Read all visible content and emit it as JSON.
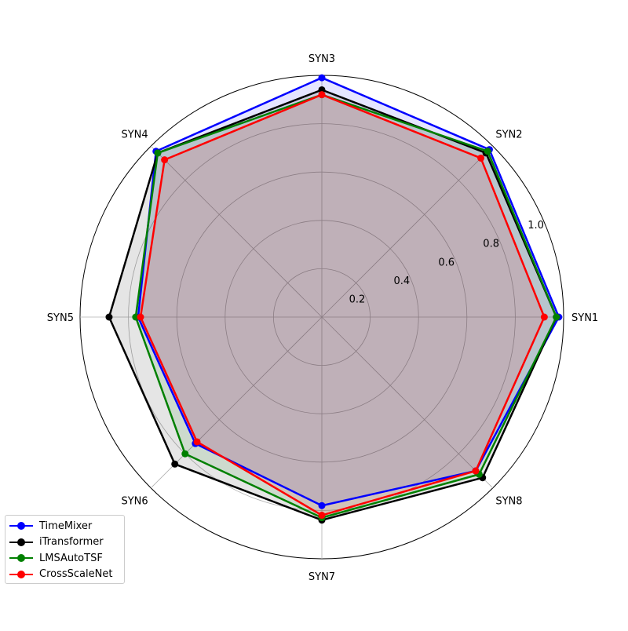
{
  "chart_data": {
    "type": "radar",
    "title": "",
    "categories": [
      "SYN1",
      "SYN2",
      "SYN3",
      "SYN4",
      "SYN5",
      "SYN6",
      "SYN7",
      "SYN8"
    ],
    "rlim": [
      0,
      1.0
    ],
    "radial_ticks": [
      0.2,
      0.4,
      0.6,
      0.8,
      1.0
    ],
    "radial_tick_labels": [
      "0.2",
      "0.4",
      "0.6",
      "0.8",
      "1.0"
    ],
    "grid": true,
    "legend_position": "lower-left",
    "series": [
      {
        "name": "TimeMixer",
        "color": "#0000ff",
        "values": [
          0.98,
          0.98,
          0.99,
          0.97,
          0.76,
          0.74,
          0.78,
          0.9
        ]
      },
      {
        "name": "iTransformer",
        "color": "#000000",
        "values": [
          0.97,
          0.96,
          0.94,
          0.96,
          0.88,
          0.86,
          0.84,
          0.94
        ]
      },
      {
        "name": "LMSAutoTSF",
        "color": "#008000",
        "values": [
          0.97,
          0.97,
          0.92,
          0.96,
          0.77,
          0.8,
          0.83,
          0.92
        ]
      },
      {
        "name": "CrossScaleNet",
        "color": "#ff0000",
        "values": [
          0.92,
          0.93,
          0.92,
          0.92,
          0.75,
          0.73,
          0.82,
          0.9
        ]
      }
    ]
  }
}
